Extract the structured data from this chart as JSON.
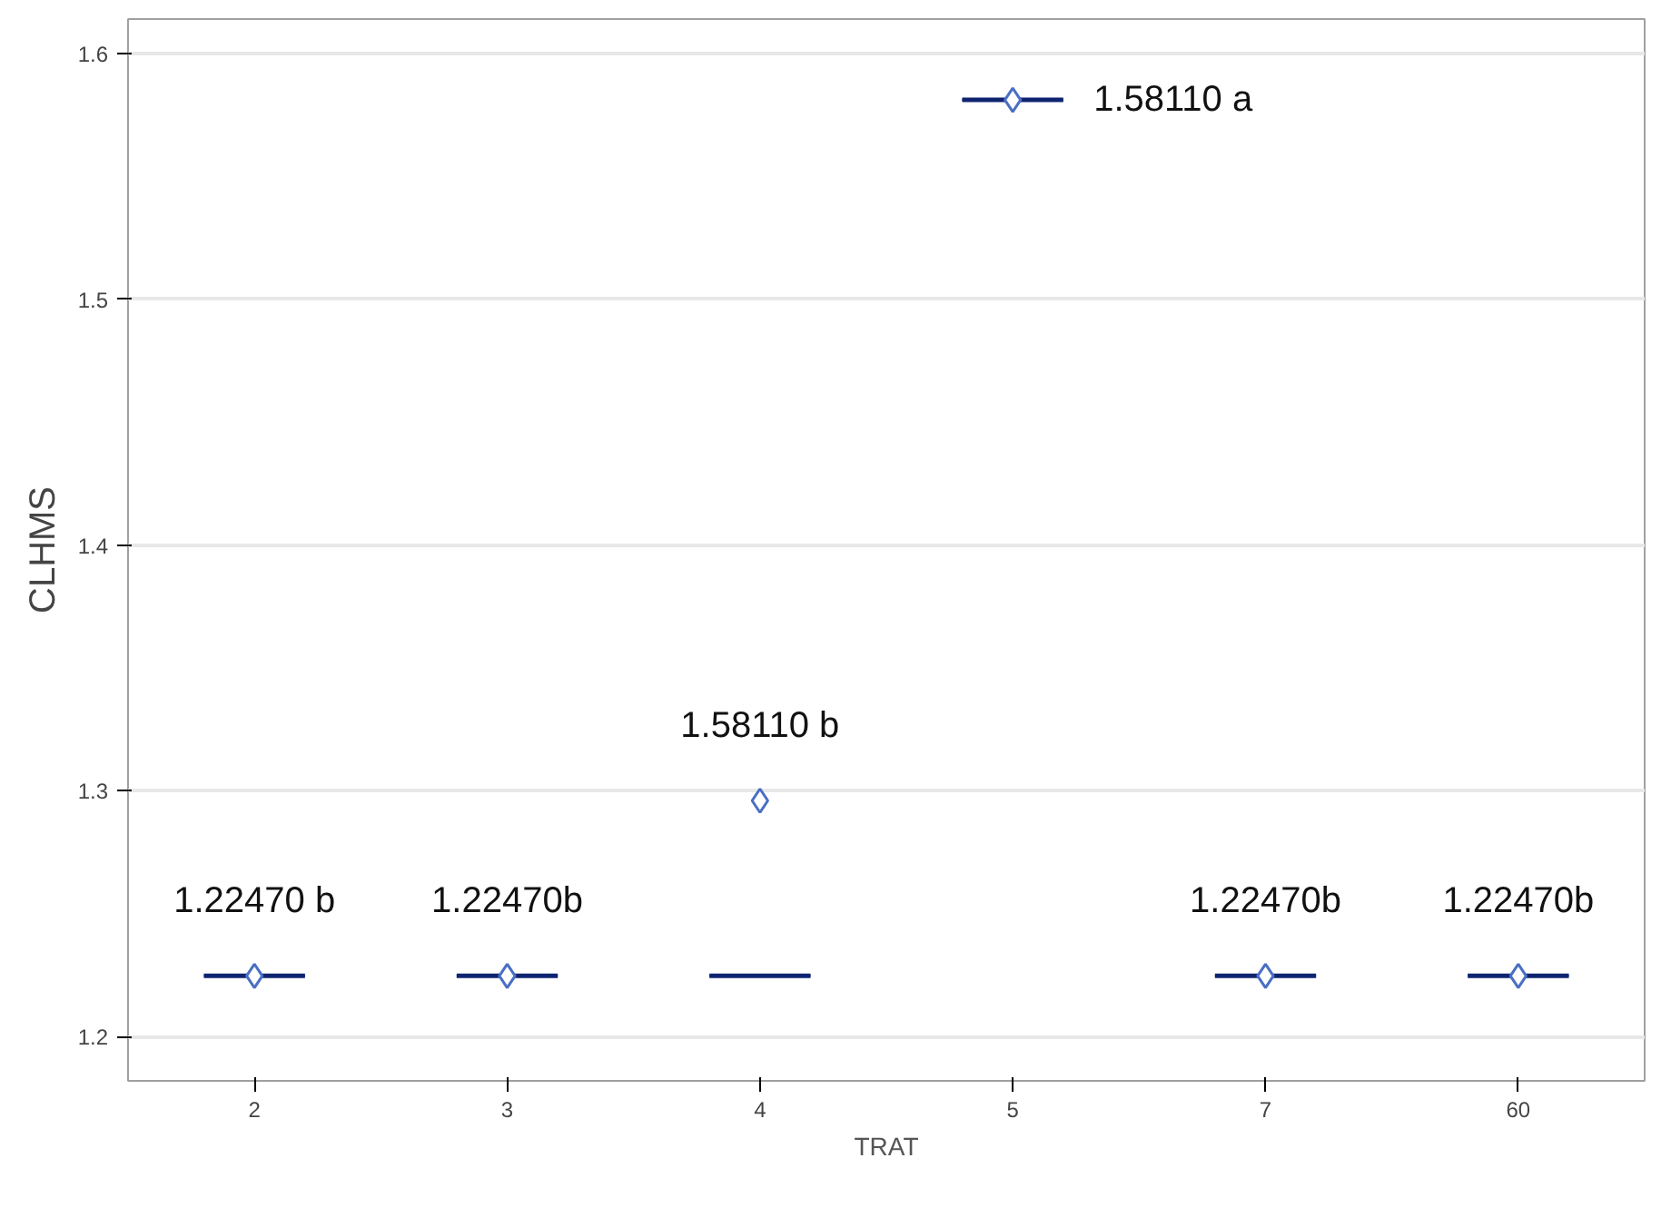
{
  "chart_data": {
    "type": "box",
    "xlabel": "TRAT",
    "ylabel": "CLHMS",
    "categories": [
      "2",
      "3",
      "4",
      "5",
      "7",
      "60"
    ],
    "series": [
      {
        "color": "#1f3c99",
        "boxes": [
          {
            "low": 1.2247,
            "q1": 1.2247,
            "median": 1.2247,
            "q3": 1.2247,
            "high": 1.2247,
            "mean": 1.2247
          },
          {
            "low": 1.2247,
            "q1": 1.2247,
            "median": 1.2247,
            "q3": 1.2247,
            "high": 1.2247,
            "mean": 1.2247
          },
          {
            "low": 1.2247,
            "q1": 1.2247,
            "median": 1.2247,
            "q3": 1.2247,
            "high": 1.2247,
            "mean": 1.296
          },
          {
            "low": 1.5811,
            "q1": 1.5811,
            "median": 1.5811,
            "q3": 1.5811,
            "high": 1.5811,
            "mean": 1.5811
          },
          {
            "low": 1.2247,
            "q1": 1.2247,
            "median": 1.2247,
            "q3": 1.2247,
            "high": 1.2247,
            "mean": 1.2247
          },
          {
            "low": 1.2247,
            "q1": 1.2247,
            "median": 1.2247,
            "q3": 1.2247,
            "high": 1.2247,
            "mean": 1.2247
          }
        ]
      }
    ],
    "ylim": [
      1.182,
      1.614
    ],
    "yticks": [
      1.2,
      1.3,
      1.4,
      1.5,
      1.6
    ],
    "grid": "y",
    "marker": "diamond",
    "annotations": [
      "1.22470 b",
      "1.22470b",
      "1.58110 b",
      {
        "text": "1.58110 a",
        "x": "5",
        "y": 1.5811
      },
      "1.22470b",
      "1.22470b"
    ]
  }
}
